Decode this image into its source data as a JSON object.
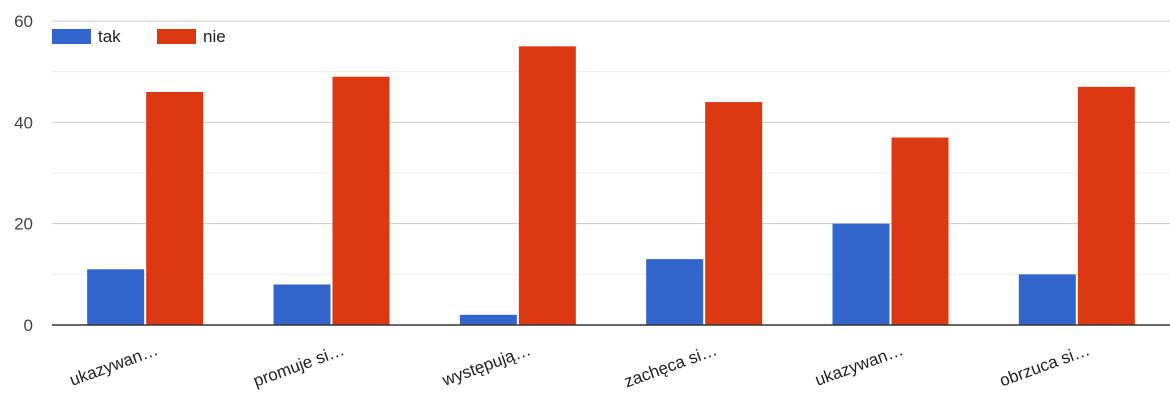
{
  "chart_data": {
    "type": "bar",
    "categories": [
      "ukazywan…",
      "promuje si…",
      "występują…",
      "zachęca si…",
      "ukazywan…",
      "obrzuca si…"
    ],
    "series": [
      {
        "name": "tak",
        "color": "#3366cc",
        "values": [
          11,
          8,
          2,
          13,
          20,
          10
        ]
      },
      {
        "name": "nie",
        "color": "#dc3912",
        "values": [
          46,
          49,
          55,
          44,
          37,
          47
        ]
      }
    ],
    "ylim": [
      0,
      60
    ],
    "yticks": [
      "0",
      "20",
      "40",
      "60"
    ],
    "grid": true,
    "legend": "top-left"
  }
}
